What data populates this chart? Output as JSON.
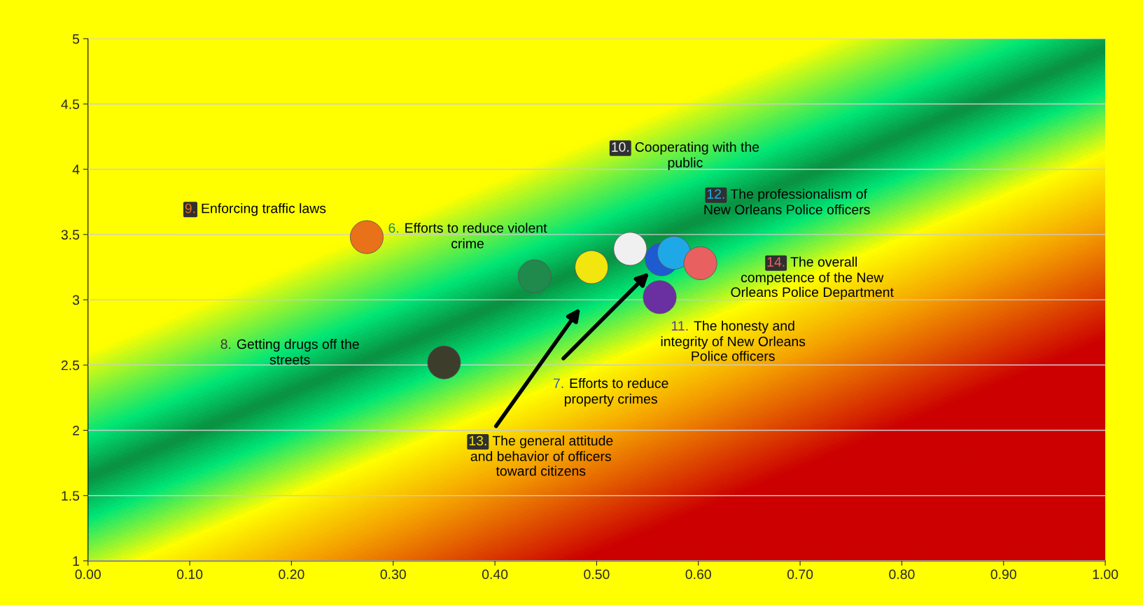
{
  "chart_data": {
    "type": "scatter",
    "xlim": [
      0,
      1
    ],
    "ylim": [
      1,
      5
    ],
    "xticks": [
      {
        "value": 0,
        "label": "0.00"
      },
      {
        "value": 0.1,
        "label": "0.10"
      },
      {
        "value": 0.2,
        "label": "0.20"
      },
      {
        "value": 0.3,
        "label": "0.30"
      },
      {
        "value": 0.4,
        "label": "0.40"
      },
      {
        "value": 0.5,
        "label": "0.50"
      },
      {
        "value": 0.6,
        "label": "0.60"
      },
      {
        "value": 0.7,
        "label": "0.70"
      },
      {
        "value": 0.8,
        "label": "0.80"
      },
      {
        "value": 0.9,
        "label": "0.90"
      },
      {
        "value": 1,
        "label": "1.00"
      }
    ],
    "yticks": [
      1,
      1.5,
      2,
      2.5,
      3,
      3.5,
      4,
      4.5,
      5
    ],
    "grid": "y",
    "marker": "circle",
    "legend": false,
    "series": [
      {
        "name": "9. Enforcing traffic laws",
        "color": "#e8711a",
        "x": [
          0.274
        ],
        "values": [
          3.48
        ]
      },
      {
        "name": "6. Efforts to reduce violent crime",
        "color": "#1f8a4c",
        "x": [
          0.439
        ],
        "values": [
          3.18
        ]
      },
      {
        "name": "8. Getting drugs off the streets",
        "color": "#3d3d2c",
        "x": [
          0.35
        ],
        "values": [
          2.52
        ]
      },
      {
        "name": "13. The general attitude and behavior of officers toward citizens",
        "color": "#f2e60e",
        "x": [
          0.495
        ],
        "values": [
          3.25
        ]
      },
      {
        "name": "10. Cooperating with the public",
        "color": "#f0f0f0",
        "x": [
          0.533
        ],
        "values": [
          3.39
        ]
      },
      {
        "name": "7. Efforts to reduce property crimes",
        "color": "#1f5bd0",
        "x": [
          0.564
        ],
        "values": [
          3.31
        ]
      },
      {
        "name": "12. The professionalism of New Orleans Police officers",
        "color": "#1fa8e8",
        "x": [
          0.576
        ],
        "values": [
          3.36
        ]
      },
      {
        "name": "14. The overall competence of the New Orleans Police Department",
        "color": "#e86060",
        "x": [
          0.602
        ],
        "values": [
          3.28
        ]
      },
      {
        "name": "11. The honesty and integrity of New Orleans Police officers",
        "color": "#6a2fa0",
        "x": [
          0.562
        ],
        "values": [
          3.02
        ]
      }
    ]
  }
}
